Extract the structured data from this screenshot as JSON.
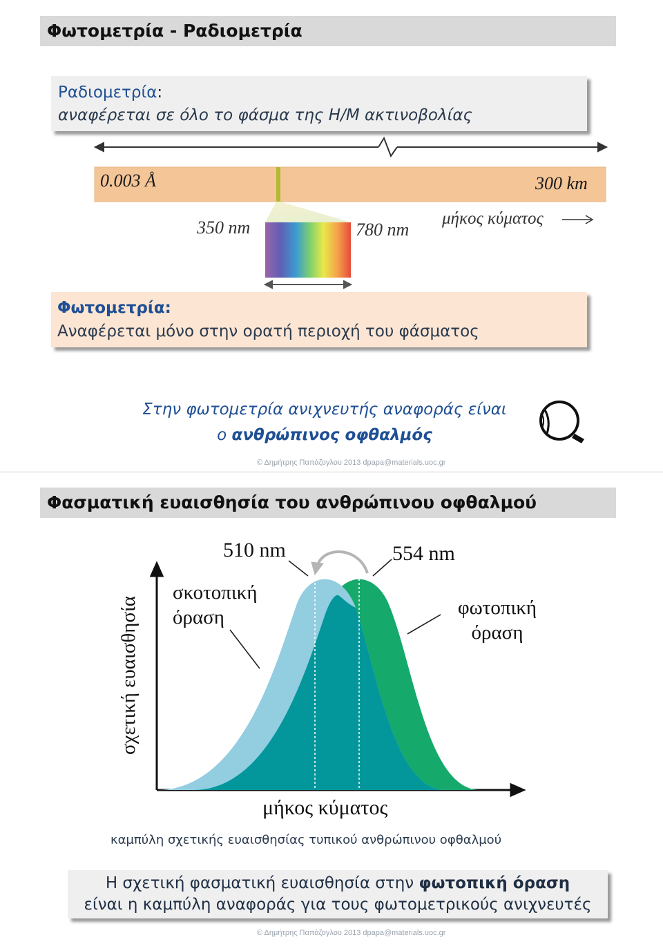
{
  "slide1": {
    "title": "Φωτομετρία - Ραδιομετρία",
    "radiometry": {
      "term": "Ραδιομετρία",
      "colon": ":",
      "description": "αναφέρεται σε όλο το φάσμα της Η/Μ ακτινοβολίας"
    },
    "spectrum": {
      "left_label": "0.003 Å",
      "right_label": "300 km",
      "vis_low": "350 nm",
      "vis_high": "780 nm",
      "wavelength_label": "μήκος κύματος"
    },
    "photometry": {
      "term": "Φωτομετρία:",
      "description": "Αναφέρεται μόνο στην ορατή περιοχή του φάσματος"
    },
    "reference_detector": {
      "line1": "Στην φωτομετρία ανιχνευτής αναφοράς είναι",
      "line2_prefix": "ο ",
      "line2_bold": "ανθρώπινος οφθαλμός"
    },
    "footer": "©  Δημήτρης Παπάζογλου   2013 dpapa@materials.uoc.gr"
  },
  "slide2": {
    "title": "Φασματική ευαισθησία του ανθρώπινου οφθαλμού",
    "caption": "καμπύλη σχετικής ευαισθησίας τυπικού ανθρώπινου οφθαλμού",
    "summary": {
      "line1_prefix": "Η σχετική φασματική ευαισθησία στην ",
      "line1_bold": "φωτοπική όραση",
      "line2": "είναι η καμπύλη αναφοράς για τους φωτομετρικούς ανιχνευτές"
    },
    "footer": "©  Δημήτρης Παπάζογλου   2013 dpapa@materials.uoc.gr"
  },
  "chart_data": {
    "type": "area",
    "xlabel": "μήκος κύματος",
    "ylabel": "σχετική ευαισθησία",
    "annotations": [
      "510 nm",
      "554 nm",
      "σκοτοπική όραση",
      "φωτοπική όραση"
    ],
    "series": [
      {
        "name": "σκοτοπική όραση",
        "peak_x": 510,
        "peak_y": 1.0,
        "color": "#92cde0"
      },
      {
        "name": "φωτοπική όραση",
        "peak_x": 554,
        "peak_y": 1.0,
        "color": "#15a96c"
      }
    ],
    "overlap_color": "#03979c"
  },
  "colors": {
    "title_bg": "#d9d9d9",
    "spectrum_bar": "#f4c597",
    "scotopic": "#92cde0",
    "photopic": "#15a96c",
    "overlap": "#03979c"
  }
}
